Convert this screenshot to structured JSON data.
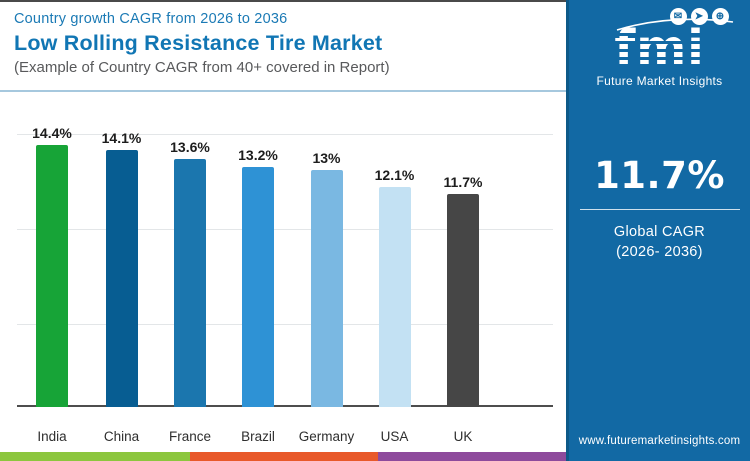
{
  "header": {
    "subtitle": "Country growth CAGR from 2026 to 2036",
    "title": "Low Rolling Resistance Tire Market",
    "note": "(Example of Country CAGR from 40+ covered in Report)"
  },
  "chart_data": {
    "type": "bar",
    "title": "Country growth CAGR from 2026 to 2036",
    "categories": [
      "India",
      "China",
      "France",
      "Brazil",
      "Germany",
      "USA",
      "UK"
    ],
    "values": [
      14.4,
      14.1,
      13.6,
      13.2,
      13.0,
      12.1,
      11.7
    ],
    "value_labels": [
      "14.4%",
      "14.1%",
      "13.6%",
      "13.2%",
      "13%",
      "12.1%",
      "11.7%"
    ],
    "bar_colors": [
      "#17a437",
      "#075d92",
      "#1b76ae",
      "#2e92d5",
      "#7ab8e2",
      "#c3e1f3",
      "#464646"
    ],
    "unit": "%",
    "xlabel": "",
    "ylabel": "",
    "ylim": [
      0,
      16
    ],
    "grid": true,
    "legend": false
  },
  "sidebar": {
    "background_color": "#1269a4",
    "logo": {
      "text": "fmi",
      "subtext": "Future Market Insights",
      "icons": [
        {
          "name": "mail-icon",
          "glyph": "✉"
        },
        {
          "name": "send-icon",
          "glyph": "➤"
        },
        {
          "name": "globe-icon",
          "glyph": "⊕"
        }
      ]
    },
    "stat": {
      "value": "11.7%",
      "label_line1": "Global CAGR",
      "label_line2": "(2026- 2036)"
    },
    "website": "www.futuremarketinsights.com"
  },
  "footer": {
    "strip_colors": [
      "#8cc63e",
      "#e8592a",
      "#8e4a9c"
    ]
  }
}
